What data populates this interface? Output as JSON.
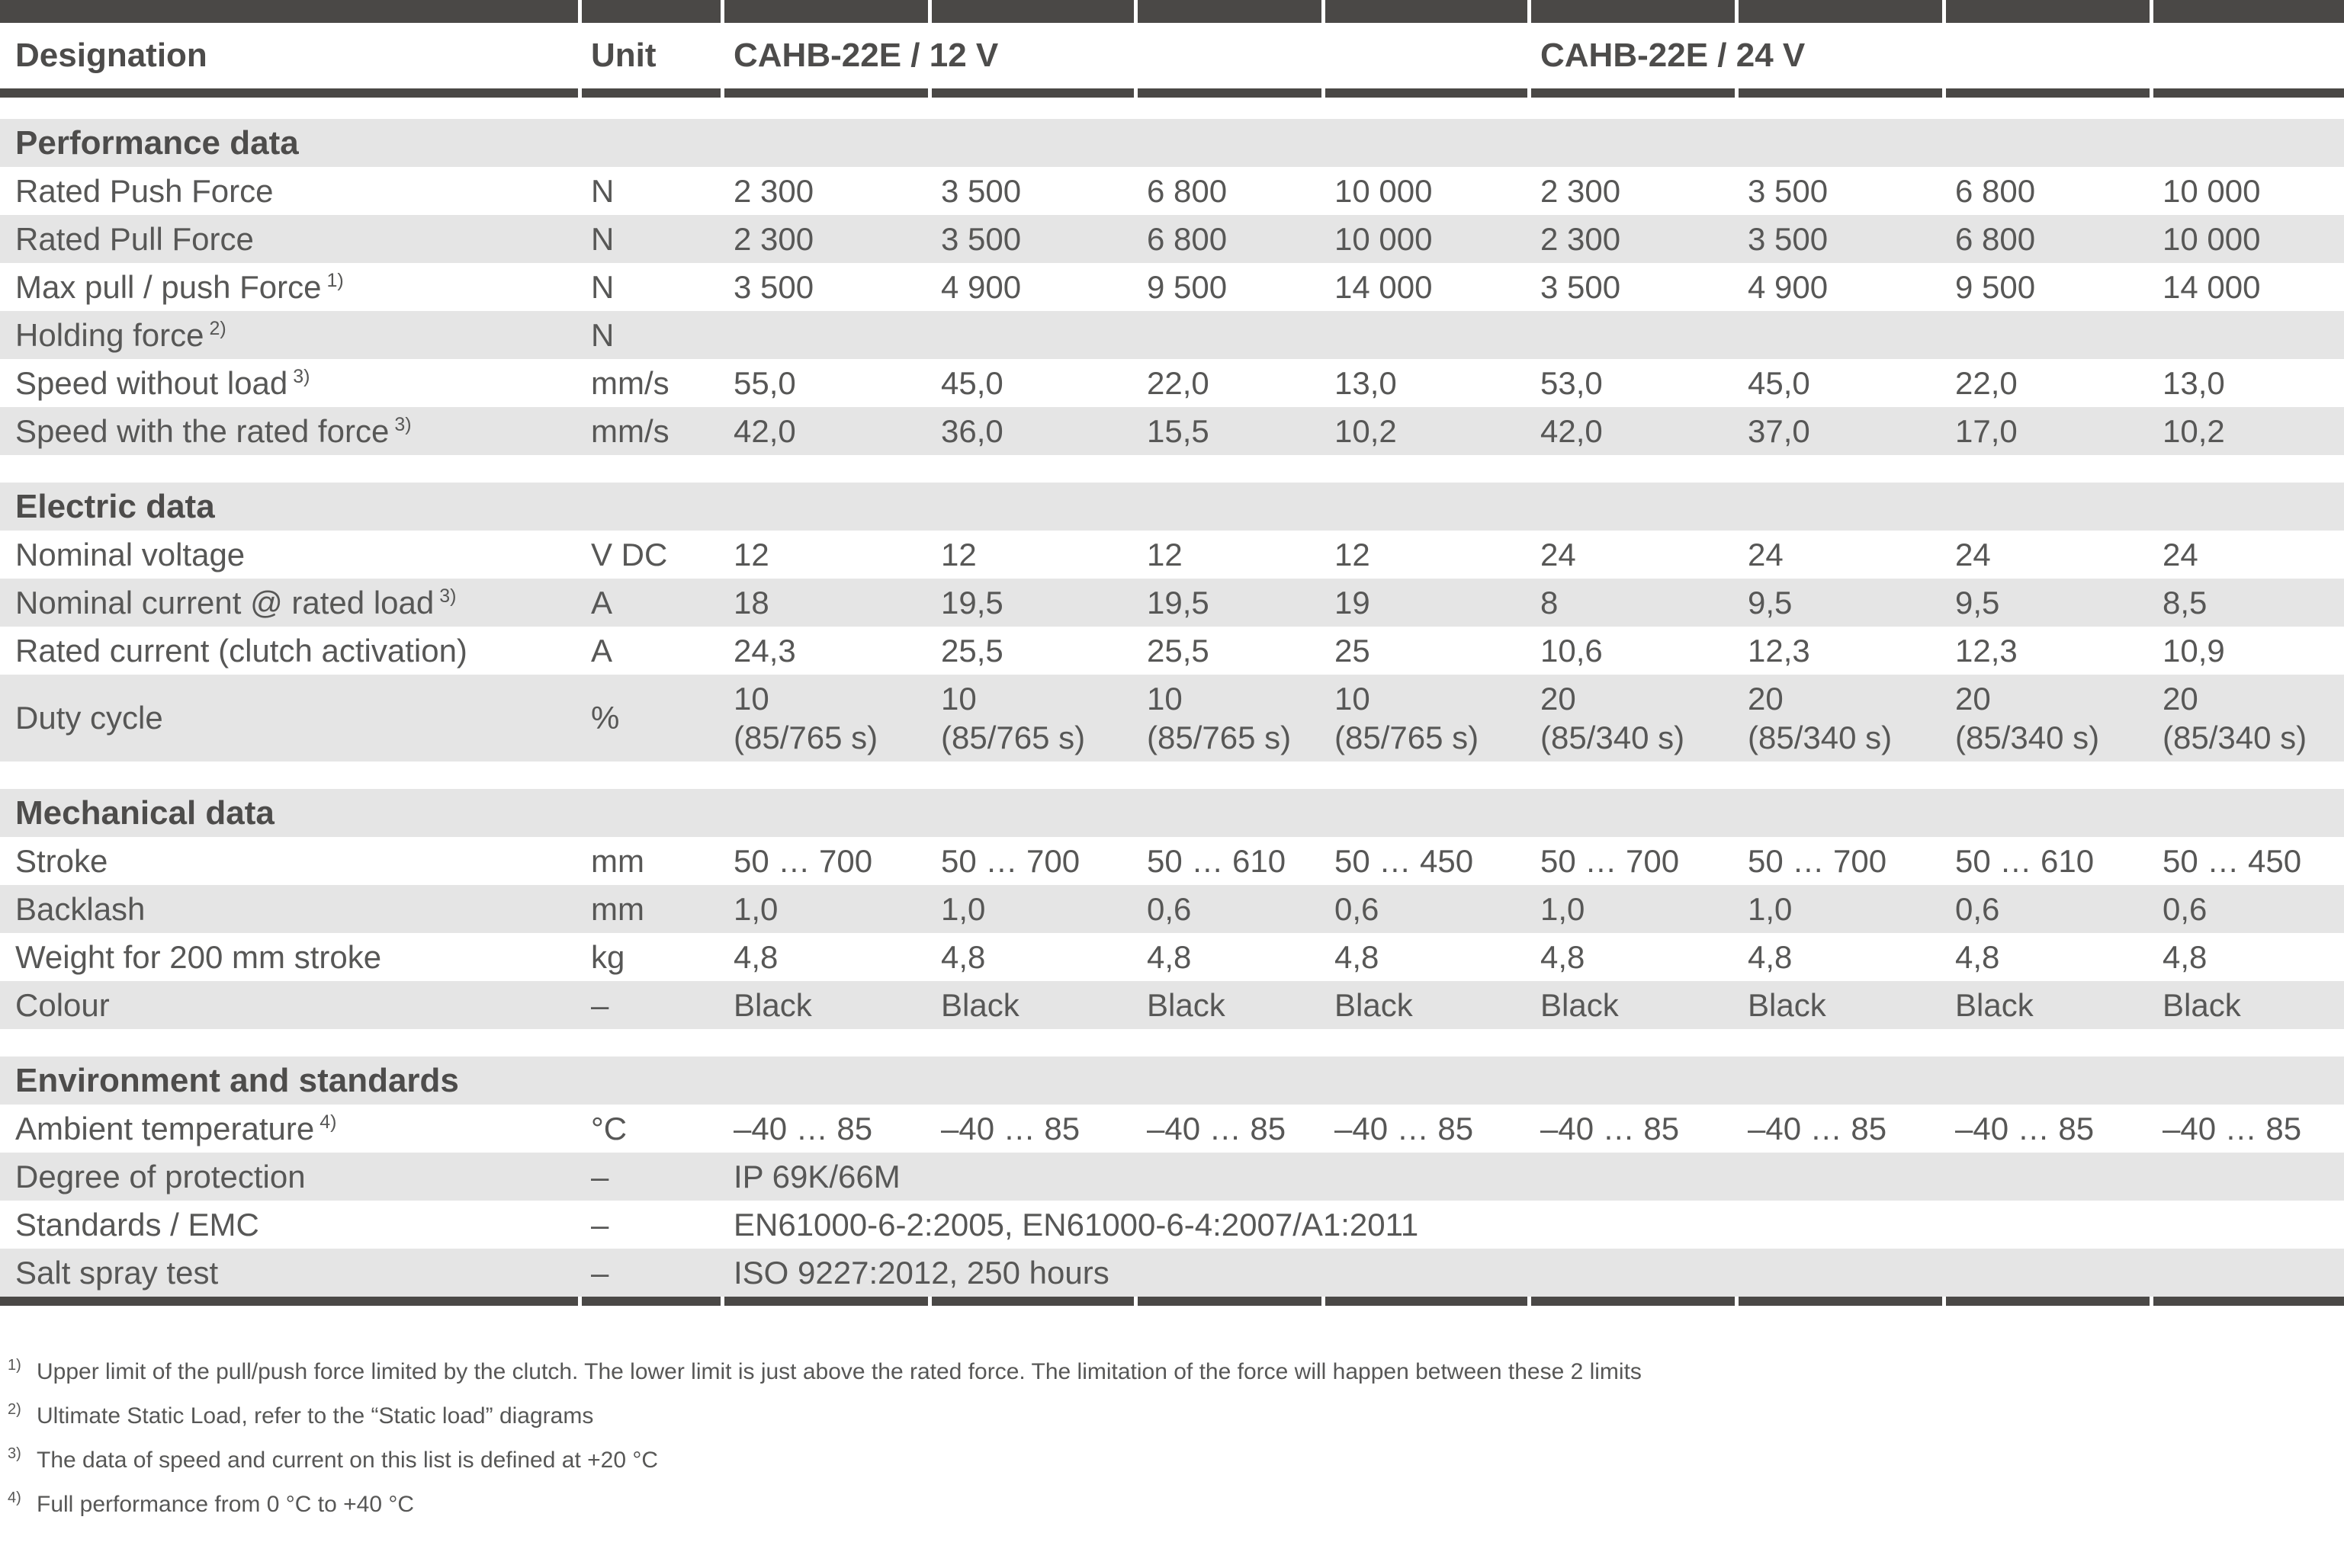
{
  "header": {
    "designation": "Designation",
    "unit": "Unit",
    "group_12v": "CAHB-22E / 12 V",
    "group_24v": "CAHB-22E / 24 V"
  },
  "colors": {
    "dark_bar": "#4a4846",
    "stripe_gray": "#e5e5e5",
    "text_gray": "#575756"
  },
  "sections": [
    {
      "title": "Performance data",
      "rows": [
        {
          "label": "Rated Push Force",
          "sup": "",
          "unit": "N",
          "values": [
            "2 300",
            "3 500",
            "6 800",
            "10 000",
            "2 300",
            "3 500",
            "6 800",
            "10 000"
          ]
        },
        {
          "label": "Rated Pull Force",
          "sup": "",
          "unit": "N",
          "values": [
            "2 300",
            "3 500",
            "6 800",
            "10 000",
            "2 300",
            "3 500",
            "6 800",
            "10 000"
          ]
        },
        {
          "label": "Max pull / push Force",
          "sup": "1)",
          "unit": "N",
          "values": [
            "3 500",
            "4 900",
            "9 500",
            "14 000",
            "3 500",
            "4 900",
            "9 500",
            "14 000"
          ]
        },
        {
          "label": "Holding force",
          "sup": "2)",
          "unit": "N",
          "values": [
            "",
            "",
            "",
            "",
            "",
            "",
            "",
            ""
          ]
        },
        {
          "label": "Speed without load",
          "sup": "3)",
          "unit": "mm/s",
          "values": [
            "55,0",
            "45,0",
            "22,0",
            "13,0",
            "53,0",
            "45,0",
            "22,0",
            "13,0"
          ]
        },
        {
          "label": "Speed with the rated force",
          "sup": "3)",
          "unit": "mm/s",
          "values": [
            "42,0",
            "36,0",
            "15,5",
            "10,2",
            "42,0",
            "37,0",
            "17,0",
            "10,2"
          ]
        }
      ]
    },
    {
      "title": "Electric data",
      "rows": [
        {
          "label": "Nominal voltage",
          "sup": "",
          "unit": "V DC",
          "values": [
            "12",
            "12",
            "12",
            "12",
            "24",
            "24",
            "24",
            "24"
          ]
        },
        {
          "label": "Nominal current @ rated load",
          "sup": "3)",
          "unit": "A",
          "values": [
            "18",
            "19,5",
            "19,5",
            "19",
            "8",
            "9,5",
            "9,5",
            "8,5"
          ]
        },
        {
          "label": "Rated current (clutch activation)",
          "sup": "",
          "unit": "A",
          "values": [
            "24,3",
            "25,5",
            "25,5",
            "25",
            "10,6",
            "12,3",
            "12,3",
            "10,9"
          ]
        },
        {
          "label": "Duty cycle",
          "sup": "",
          "unit": "%",
          "tall": true,
          "values": [
            [
              "10",
              "(85/765 s)"
            ],
            [
              "10",
              "(85/765 s)"
            ],
            [
              "10",
              "(85/765 s)"
            ],
            [
              "10",
              "(85/765 s)"
            ],
            [
              "20",
              "(85/340 s)"
            ],
            [
              "20",
              "(85/340 s)"
            ],
            [
              "20",
              "(85/340 s)"
            ],
            [
              "20",
              "(85/340 s)"
            ]
          ]
        }
      ]
    },
    {
      "title": "Mechanical data",
      "rows": [
        {
          "label": "Stroke",
          "sup": "",
          "unit": "mm",
          "values": [
            "50 … 700",
            "50 … 700",
            "50 … 610",
            "50 … 450",
            "50 … 700",
            "50 … 700",
            "50 … 610",
            "50 … 450"
          ]
        },
        {
          "label": "Backlash",
          "sup": "",
          "unit": "mm",
          "values": [
            "1,0",
            "1,0",
            "0,6",
            "0,6",
            "1,0",
            "1,0",
            "0,6",
            "0,6"
          ]
        },
        {
          "label": "Weight for 200 mm stroke",
          "sup": "",
          "unit": "kg",
          "values": [
            "4,8",
            "4,8",
            "4,8",
            "4,8",
            "4,8",
            "4,8",
            "4,8",
            "4,8"
          ]
        },
        {
          "label": "Colour",
          "sup": "",
          "unit": "–",
          "values": [
            "Black",
            "Black",
            "Black",
            "Black",
            "Black",
            "Black",
            "Black",
            "Black"
          ]
        }
      ]
    },
    {
      "title": "Environment and standards",
      "rows": [
        {
          "label": "Ambient temperature",
          "sup": "4)",
          "unit": "°C",
          "values": [
            "–40 … 85",
            "–40 … 85",
            "–40 … 85",
            "–40 … 85",
            "–40 … 85",
            "–40 … 85",
            "–40 … 85",
            "–40 … 85"
          ]
        },
        {
          "label": "Degree of protection",
          "sup": "",
          "unit": "–",
          "span_value": "IP 69K/66M"
        },
        {
          "label": "Standards / EMC",
          "sup": "",
          "unit": "–",
          "span_value": "EN61000-6-2:2005, EN61000-6-4:2007/A1:2011"
        },
        {
          "label": "Salt spray test",
          "sup": "",
          "unit": "–",
          "span_value": "ISO 9227:2012, 250 hours"
        }
      ]
    }
  ],
  "footnotes": [
    {
      "marker": "1)",
      "text": "Upper limit of the pull/push force limited by the clutch. The lower limit is just above the rated force. The limitation of the force will happen between these 2 limits"
    },
    {
      "marker": "2)",
      "text": "Ultimate Static Load, refer to the “Static load” diagrams"
    },
    {
      "marker": "3)",
      "text": "The data of speed and current on this list is defined at +20 °C"
    },
    {
      "marker": "4)",
      "text": "Full performance from 0 °C to +40 °C"
    }
  ]
}
